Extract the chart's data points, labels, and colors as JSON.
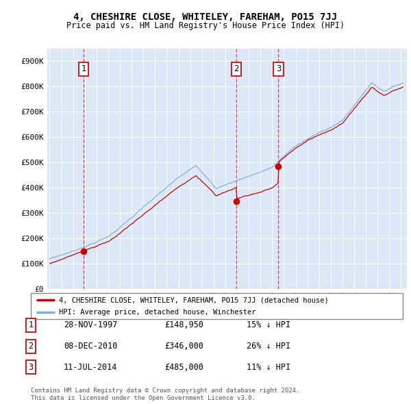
{
  "title": "4, CHESHIRE CLOSE, WHITELEY, FAREHAM, PO15 7JJ",
  "subtitle": "Price paid vs. HM Land Registry's House Price Index (HPI)",
  "ylabel_ticks": [
    "£0",
    "£100K",
    "£200K",
    "£300K",
    "£400K",
    "£500K",
    "£600K",
    "£700K",
    "£800K",
    "£900K"
  ],
  "ytick_vals": [
    0,
    100000,
    200000,
    300000,
    400000,
    500000,
    600000,
    700000,
    800000,
    900000
  ],
  "xmin": 1994.8,
  "xmax": 2025.5,
  "ymin": 0,
  "ymax": 950000,
  "sale_dates": [
    1997.91,
    2010.93,
    2014.53
  ],
  "sale_prices": [
    148950,
    346000,
    485000
  ],
  "sale_labels": [
    "1",
    "2",
    "3"
  ],
  "legend_entry1": "4, CHESHIRE CLOSE, WHITELEY, FAREHAM, PO15 7JJ (detached house)",
  "legend_entry2": "HPI: Average price, detached house, Winchester",
  "table_rows": [
    [
      "1",
      "28-NOV-1997",
      "£148,950",
      "15% ↓ HPI"
    ],
    [
      "2",
      "08-DEC-2010",
      "£346,000",
      "26% ↓ HPI"
    ],
    [
      "3",
      "11-JUL-2014",
      "£485,000",
      "11% ↓ HPI"
    ]
  ],
  "footnote1": "Contains HM Land Registry data © Crown copyright and database right 2024.",
  "footnote2": "This data is licensed under the Open Government Licence v3.0.",
  "plot_bg_color": "#dce8f8",
  "grid_color": "#ffffff",
  "red_line_color": "#cc0000",
  "blue_line_color": "#7ab0d4",
  "dashed_red_color": "#dd3333"
}
